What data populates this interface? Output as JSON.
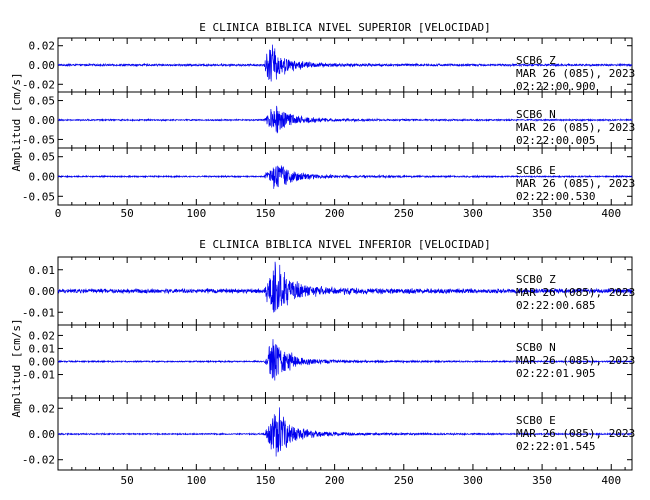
{
  "chart_data": [
    {
      "type": "line",
      "title": "E CLINICA BIBLICA NIVEL SUPERIOR [VELOCIDAD]",
      "ylabel": "Amplitud [cm/s]",
      "xlim": [
        0,
        415
      ],
      "x_ticks": [
        "0",
        "50",
        "100",
        "150",
        "200",
        "250",
        "300",
        "350",
        "400"
      ],
      "traces": [
        {
          "station": "SCB6",
          "component": "Z",
          "date": "MAR 26 (085), 2023",
          "time": "02:22:00.900",
          "ylim": [
            -0.028,
            0.028
          ],
          "y_ticks": [
            0.02,
            0.0,
            -0.02
          ],
          "y_tick_labels": [
            "0.02",
            "0.00",
            "-0.02"
          ],
          "peak": 0.024,
          "onset": 149,
          "peak_time": 153,
          "noise": 0.0012
        },
        {
          "station": "SCB6",
          "component": "N",
          "date": "MAR 26 (085), 2023",
          "time": "02:22:00.005",
          "ylim": [
            -0.072,
            0.072
          ],
          "y_ticks": [
            0.05,
            0.0,
            -0.05
          ],
          "y_tick_labels": [
            "0.05",
            "0.00",
            "-0.05"
          ],
          "peak": 0.045,
          "onset": 149,
          "peak_time": 158,
          "noise": 0.002
        },
        {
          "station": "SCB6",
          "component": "E",
          "date": "MAR 26 (085), 2023",
          "time": "02:22:00.530",
          "ylim": [
            -0.072,
            0.072
          ],
          "y_ticks": [
            0.05,
            0.0,
            -0.05
          ],
          "y_tick_labels": [
            "0.05",
            "0.00",
            "-0.05"
          ],
          "peak": 0.05,
          "onset": 149,
          "peak_time": 158,
          "noise": 0.002
        }
      ]
    },
    {
      "type": "line",
      "title": "E CLINICA BIBLICA NIVEL INFERIOR [VELOCIDAD]",
      "ylabel": "Amplitud [cm/s]",
      "xlim": [
        0,
        415
      ],
      "x_ticks": [
        "50",
        "100",
        "150",
        "200",
        "250",
        "300",
        "350",
        "400"
      ],
      "traces": [
        {
          "station": "SCB0",
          "component": "Z",
          "date": "MAR 26 (085), 2023",
          "time": "02:22:00.685",
          "ylim": [
            -0.016,
            0.016
          ],
          "y_ticks": [
            0.01,
            0.0,
            -0.01
          ],
          "y_tick_labels": [
            "0.01",
            "0.00",
            "-0.01"
          ],
          "peak": 0.015,
          "onset": 149,
          "peak_time": 157,
          "noise": 0.0012
        },
        {
          "station": "SCB0",
          "component": "N",
          "date": "MAR 26 (085), 2023",
          "time": "02:22:01.905",
          "ylim": [
            -0.028,
            0.028
          ],
          "y_ticks": [
            0.02,
            0.01,
            0.0,
            -0.01
          ],
          "y_tick_labels": [
            "0.02",
            "0.01",
            "0.00",
            "-0.01"
          ],
          "peak": 0.02,
          "onset": 149,
          "peak_time": 156,
          "noise": 0.0006
        },
        {
          "station": "SCB0",
          "component": "E",
          "date": "MAR 26 (085), 2023",
          "time": "02:22:01.545",
          "ylim": [
            -0.028,
            0.028
          ],
          "y_ticks": [
            0.02,
            0.0,
            -0.02
          ],
          "y_tick_labels": [
            "0.02",
            "0.00",
            "-0.02"
          ],
          "peak": 0.023,
          "onset": 149,
          "peak_time": 158,
          "noise": 0.0006
        }
      ]
    }
  ],
  "colors": {
    "trace": "#0000ee",
    "axes": "#000000",
    "background": "#ffffff"
  }
}
